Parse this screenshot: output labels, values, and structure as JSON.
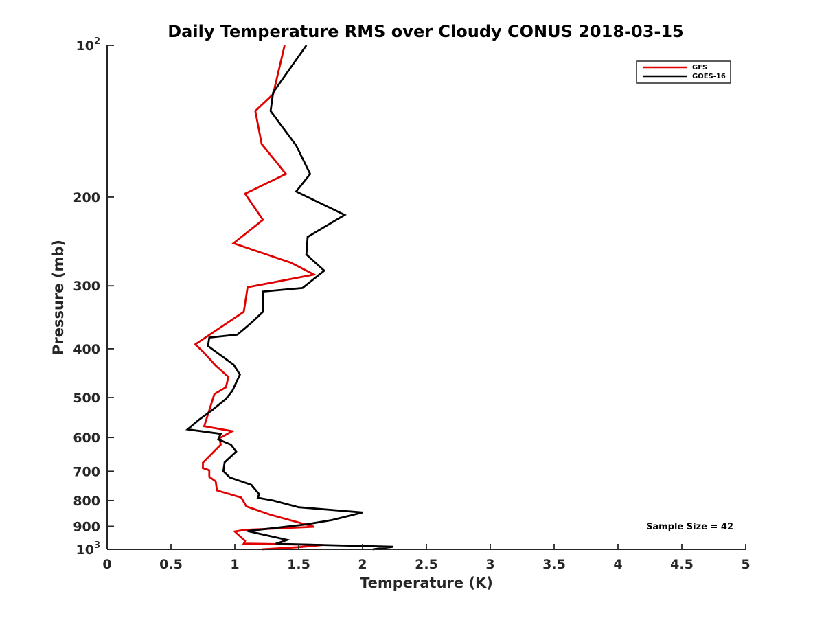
{
  "chart_data": {
    "type": "line",
    "title": "Daily Temperature RMS over Cloudy CONUS 2018-03-15",
    "xlabel": "Temperature (K)",
    "ylabel": "Pressure (mb)",
    "xlim": [
      0,
      5
    ],
    "ylim": [
      100,
      1000
    ],
    "y_scale": "log",
    "y_reversed": true,
    "grid": false,
    "legend_position": "top-right",
    "x_ticks": [
      "0",
      "0.5",
      "1",
      "1.5",
      "2",
      "2.5",
      "3",
      "3.5",
      "4",
      "4.5",
      "5"
    ],
    "y_ticks": [
      {
        "value": 100,
        "label": "10",
        "exp": "2"
      },
      {
        "value": 200,
        "label": "200"
      },
      {
        "value": 300,
        "label": "300"
      },
      {
        "value": 400,
        "label": "400"
      },
      {
        "value": 500,
        "label": "500"
      },
      {
        "value": 600,
        "label": "600"
      },
      {
        "value": 700,
        "label": "700"
      },
      {
        "value": 800,
        "label": "800"
      },
      {
        "value": 900,
        "label": "900"
      },
      {
        "value": 1000,
        "label": "10",
        "exp": "3"
      }
    ],
    "series": [
      {
        "name": "GFS",
        "color": "#e00000",
        "points": [
          [
            1.39,
            100
          ],
          [
            1.3,
            125
          ],
          [
            1.16,
            135
          ],
          [
            1.21,
            157
          ],
          [
            1.4,
            180
          ],
          [
            1.08,
            197
          ],
          [
            1.22,
            222
          ],
          [
            0.99,
            247
          ],
          [
            1.44,
            270
          ],
          [
            1.62,
            285
          ],
          [
            1.1,
            302
          ],
          [
            1.07,
            338
          ],
          [
            0.69,
            392
          ],
          [
            0.75,
            405
          ],
          [
            0.85,
            432
          ],
          [
            0.95,
            455
          ],
          [
            0.93,
            477
          ],
          [
            0.84,
            492
          ],
          [
            0.76,
            570
          ],
          [
            0.98,
            583
          ],
          [
            0.88,
            602
          ],
          [
            0.89,
            620
          ],
          [
            0.75,
            673
          ],
          [
            0.75,
            690
          ],
          [
            0.8,
            697
          ],
          [
            0.8,
            718
          ],
          [
            0.85,
            733
          ],
          [
            0.86,
            764
          ],
          [
            1.05,
            789
          ],
          [
            1.09,
            822
          ],
          [
            1.28,
            854
          ],
          [
            1.62,
            902
          ],
          [
            1.08,
            915
          ],
          [
            1.0,
            922
          ],
          [
            1.08,
            962
          ],
          [
            1.07,
            974
          ],
          [
            1.69,
            980
          ],
          [
            1.5,
            990
          ],
          [
            1.21,
            1000
          ]
        ]
      },
      {
        "name": "GOES-16",
        "color": "#000000",
        "points": [
          [
            1.56,
            100
          ],
          [
            1.3,
            124
          ],
          [
            1.28,
            135
          ],
          [
            1.48,
            158
          ],
          [
            1.59,
            180
          ],
          [
            1.48,
            195
          ],
          [
            1.86,
            217
          ],
          [
            1.57,
            240
          ],
          [
            1.56,
            260
          ],
          [
            1.7,
            280
          ],
          [
            1.53,
            303
          ],
          [
            1.22,
            308
          ],
          [
            1.22,
            338
          ],
          [
            1.13,
            355
          ],
          [
            1.02,
            375
          ],
          [
            0.8,
            380
          ],
          [
            0.79,
            395
          ],
          [
            0.99,
            430
          ],
          [
            1.04,
            450
          ],
          [
            0.98,
            485
          ],
          [
            0.93,
            503
          ],
          [
            0.82,
            530
          ],
          [
            0.72,
            553
          ],
          [
            0.63,
            578
          ],
          [
            0.89,
            590
          ],
          [
            0.87,
            605
          ],
          [
            0.97,
            620
          ],
          [
            1.01,
            640
          ],
          [
            0.92,
            672
          ],
          [
            0.91,
            700
          ],
          [
            0.96,
            720
          ],
          [
            1.13,
            745
          ],
          [
            1.19,
            777
          ],
          [
            1.18,
            790
          ],
          [
            1.3,
            800
          ],
          [
            1.5,
            825
          ],
          [
            2.0,
            845
          ],
          [
            1.76,
            875
          ],
          [
            1.55,
            893
          ],
          [
            1.1,
            920
          ],
          [
            1.41,
            958
          ],
          [
            1.32,
            975
          ],
          [
            2.24,
            988
          ],
          [
            2.08,
            1000
          ]
        ]
      }
    ],
    "annotations": [
      {
        "text": "Sample Size = 42",
        "position": "bottom-right"
      }
    ]
  }
}
